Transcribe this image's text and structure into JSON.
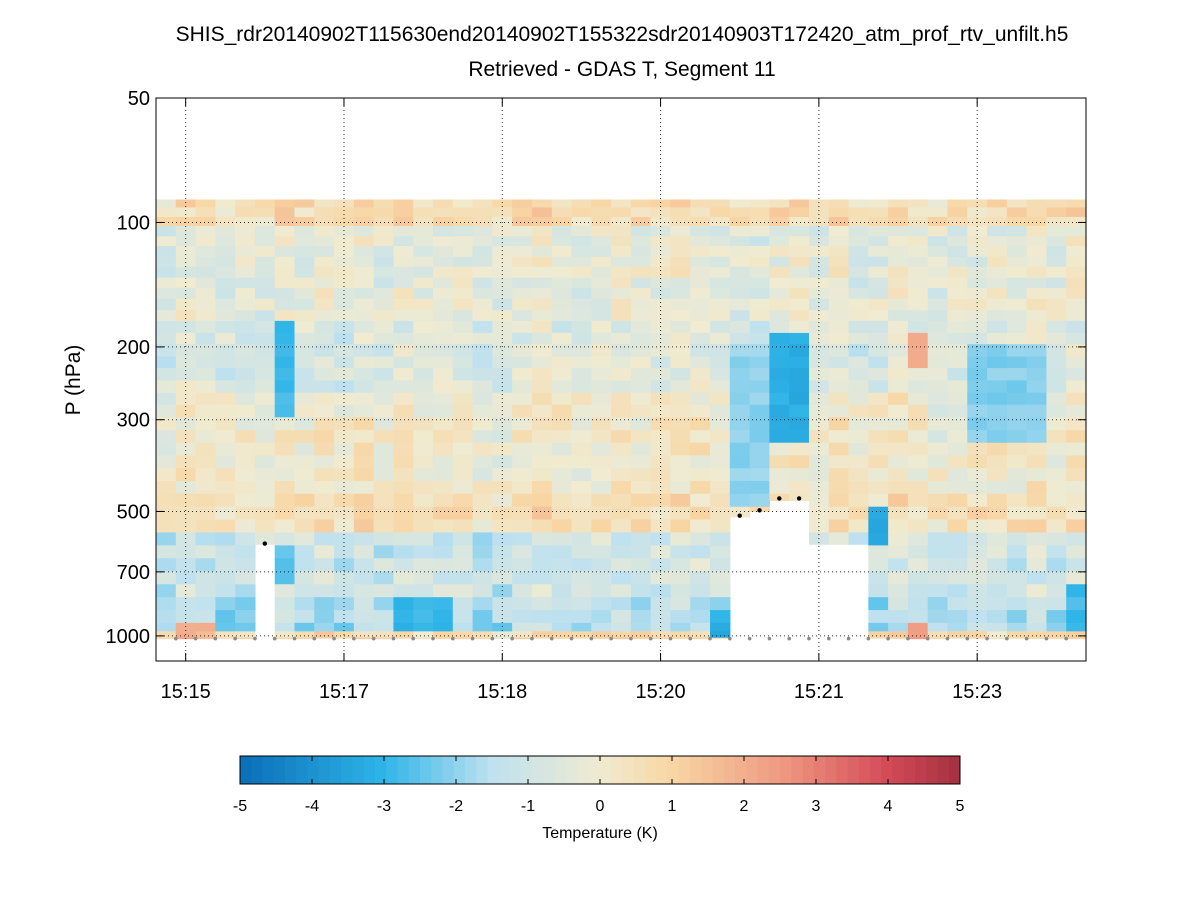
{
  "chart_data": {
    "type": "heatmap",
    "title": "SHIS_rdr20140902T115630end20140902T155322sdr20140903T172420_atm_prof_rtv_unfilt.h5",
    "subtitle": "Retrieved - GDAS T, Segment 11",
    "xlabel": "",
    "ylabel": "P (hPa)",
    "y_scale": "log",
    "y_reversed": true,
    "ylim": [
      50,
      1150
    ],
    "y_ticks": [
      50,
      100,
      200,
      300,
      500,
      700,
      1000
    ],
    "x_tick_labels": [
      "15:15",
      "15:17",
      "15:18",
      "15:20",
      "15:21",
      "15:23"
    ],
    "x_tick_columns": [
      1,
      9,
      17,
      25,
      33,
      41
    ],
    "grid": true,
    "n_columns": 47,
    "data_top_hPa": 88,
    "pressure_levels_hPa": [
      88,
      92,
      97,
      102,
      108,
      114,
      121,
      128,
      136,
      144,
      153,
      163,
      173,
      185,
      197,
      211,
      225,
      241,
      258,
      276,
      296,
      318,
      341,
      366,
      393,
      422,
      453,
      487,
      523,
      562,
      604,
      649,
      698,
      750,
      806,
      866,
      930,
      975,
      1010,
      1050
    ],
    "column_sfc_or_cloud_hPa": [
      1015,
      1015,
      1015,
      1015,
      1015,
      600,
      1015,
      1015,
      1015,
      1015,
      1015,
      1015,
      1015,
      1015,
      1015,
      1015,
      1015,
      1015,
      1015,
      1015,
      1015,
      1015,
      1015,
      1015,
      1015,
      1015,
      1015,
      1015,
      1015,
      515,
      500,
      470,
      470,
      600,
      600,
      600,
      1015,
      1015,
      1015,
      1015,
      1015,
      1015,
      1015,
      1015,
      1015,
      1015,
      1015
    ],
    "cloud_top_markers": [
      {
        "column": 5,
        "p_hPa": 598
      },
      {
        "column": 29,
        "p_hPa": 512
      },
      {
        "column": 30,
        "p_hPa": 497
      },
      {
        "column": 31,
        "p_hPa": 465
      },
      {
        "column": 32,
        "p_hPa": 465
      }
    ],
    "surface_marker_p_hPa": 1015,
    "features": [
      {
        "columns": [
          1
        ],
        "p_range": [
          950,
          1030
        ],
        "value": 2.2
      },
      {
        "columns": [
          2
        ],
        "p_range": [
          950,
          1030
        ],
        "value": 1.8
      },
      {
        "columns": [
          38
        ],
        "p_range": [
          950,
          1030
        ],
        "value": 2.5
      },
      {
        "columns": [
          38
        ],
        "p_range": [
          190,
          230
        ],
        "value": 1.9
      },
      {
        "columns": [
          12,
          13,
          14
        ],
        "p_range": [
          820,
          960
        ],
        "value": -3.0
      },
      {
        "columns": [
          36
        ],
        "p_range": [
          500,
          590
        ],
        "value": -3.2
      },
      {
        "columns": [
          31,
          32
        ],
        "p_range": [
          190,
          350
        ],
        "value": -3.2
      },
      {
        "columns": [
          29,
          30
        ],
        "p_range": [
          200,
          480
        ],
        "value": -2.0
      },
      {
        "columns": [
          6
        ],
        "p_range": [
          170,
          290
        ],
        "value": -2.8
      },
      {
        "columns": [
          6
        ],
        "p_range": [
          600,
          760
        ],
        "value": -2.6
      },
      {
        "columns": [
          28
        ],
        "p_range": [
          870,
          1010
        ],
        "value": -3.2
      },
      {
        "columns": [
          41,
          42,
          43,
          44
        ],
        "p_range": [
          200,
          340
        ],
        "value": -2.1
      },
      {
        "columns": [
          46
        ],
        "p_range": [
          760,
          960
        ],
        "value": -2.8
      }
    ],
    "colorbar": {
      "label": "Temperature (K)",
      "clim": [
        -5,
        5
      ],
      "ticks": [
        "-5",
        "-4",
        "-3",
        "-2",
        "-1",
        "0",
        "1",
        "2",
        "3",
        "4",
        "5"
      ],
      "colormap_stops": [
        {
          "v": -5,
          "color": "#0a6eb7"
        },
        {
          "v": -3,
          "color": "#2fb5e8"
        },
        {
          "v": -1.5,
          "color": "#bfe1ef"
        },
        {
          "v": 0,
          "color": "#f0ebd1"
        },
        {
          "v": 1,
          "color": "#f8d6a4"
        },
        {
          "v": 2.5,
          "color": "#ef9a82"
        },
        {
          "v": 4,
          "color": "#d44a58"
        },
        {
          "v": 5,
          "color": "#a4303f"
        }
      ]
    }
  }
}
